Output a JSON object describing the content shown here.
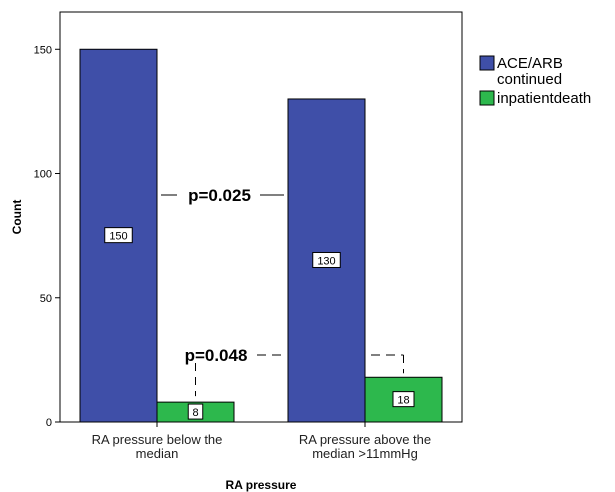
{
  "chart_data": {
    "type": "bar",
    "xlabel": "RA pressure",
    "ylabel": "Count",
    "ylim": [
      0,
      165
    ],
    "yticks": [
      0,
      50,
      100,
      150
    ],
    "grid": false,
    "legend_position": "right",
    "categories": [
      [
        "RA pressure below the",
        "median"
      ],
      [
        "RA pressure above the",
        "median >11mmHg"
      ]
    ],
    "series": [
      {
        "name": [
          "ACE/ARB",
          "continued"
        ],
        "color": "#3f4fa8",
        "values": [
          150,
          130
        ],
        "labels": [
          "150",
          "130"
        ]
      },
      {
        "name": [
          "inpatientdeath"
        ],
        "color": "#2db84d",
        "values": [
          8,
          18
        ],
        "labels": [
          "8",
          "18"
        ]
      }
    ],
    "annotations": [
      {
        "text": "p=0.025",
        "series": 0
      },
      {
        "text": "p=0.048",
        "series": 1
      }
    ]
  }
}
